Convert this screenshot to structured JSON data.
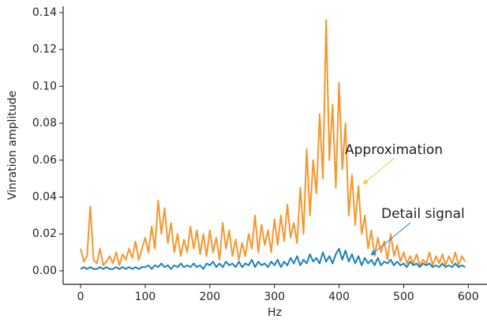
{
  "chart_data": {
    "type": "line",
    "xlabel": "Hz",
    "ylabel": "Vinration amplitude",
    "xlim": [
      -27,
      629
    ],
    "ylim": [
      -0.0073,
      0.1434
    ],
    "xticks": [
      0,
      100,
      200,
      300,
      400,
      500,
      600
    ],
    "yticks": [
      {
        "value": 0,
        "label": "0.00"
      },
      0.02,
      0.04,
      0.06,
      0.08,
      {
        "value": 0.1,
        "label": "0.10"
      },
      0.12,
      0.14
    ],
    "x": [
      0,
      5,
      10,
      15,
      20,
      25,
      30,
      35,
      40,
      45,
      50,
      55,
      60,
      65,
      70,
      75,
      80,
      85,
      90,
      95,
      100,
      105,
      110,
      115,
      120,
      125,
      130,
      135,
      140,
      145,
      150,
      155,
      160,
      165,
      170,
      175,
      180,
      185,
      190,
      195,
      200,
      205,
      210,
      215,
      220,
      225,
      230,
      235,
      240,
      245,
      250,
      255,
      260,
      265,
      270,
      275,
      280,
      285,
      290,
      295,
      300,
      305,
      310,
      315,
      320,
      325,
      330,
      335,
      340,
      345,
      350,
      355,
      360,
      365,
      370,
      375,
      380,
      385,
      390,
      395,
      400,
      405,
      410,
      415,
      420,
      425,
      430,
      435,
      440,
      445,
      450,
      455,
      460,
      465,
      470,
      475,
      480,
      485,
      490,
      495,
      500,
      505,
      510,
      515,
      520,
      525,
      530,
      535,
      540,
      545,
      550,
      555,
      560,
      565,
      570,
      575,
      580,
      585,
      590,
      595
    ],
    "series": [
      {
        "color": "#f7962d",
        "values": [
          0.012,
          0.005,
          0.008,
          0.035,
          0.006,
          0.004,
          0.012,
          0.003,
          0.005,
          0.008,
          0.004,
          0.01,
          0.003,
          0.009,
          0.006,
          0.012,
          0.007,
          0.016,
          0.006,
          0.012,
          0.018,
          0.01,
          0.024,
          0.012,
          0.038,
          0.02,
          0.034,
          0.015,
          0.026,
          0.01,
          0.02,
          0.008,
          0.017,
          0.01,
          0.024,
          0.012,
          0.022,
          0.009,
          0.02,
          0.008,
          0.022,
          0.01,
          0.018,
          0.006,
          0.026,
          0.012,
          0.022,
          0.008,
          0.017,
          0.006,
          0.015,
          0.008,
          0.02,
          0.012,
          0.03,
          0.01,
          0.025,
          0.014,
          0.022,
          0.01,
          0.028,
          0.014,
          0.03,
          0.016,
          0.036,
          0.018,
          0.026,
          0.015,
          0.045,
          0.02,
          0.066,
          0.03,
          0.06,
          0.042,
          0.085,
          0.05,
          0.136,
          0.06,
          0.09,
          0.045,
          0.102,
          0.055,
          0.08,
          0.03,
          0.052,
          0.025,
          0.046,
          0.02,
          0.03,
          0.012,
          0.022,
          0.008,
          0.018,
          0.01,
          0.016,
          0.006,
          0.02,
          0.008,
          0.014,
          0.005,
          0.01,
          0.004,
          0.008,
          0.004,
          0.009,
          0.003,
          0.006,
          0.004,
          0.01,
          0.003,
          0.008,
          0.004,
          0.009,
          0.003,
          0.008,
          0.004,
          0.01,
          0.003,
          0.008,
          0.005
        ]
      },
      {
        "color": "#1a80b8",
        "values": [
          0.001,
          0.002,
          0.001,
          0.002,
          0.001,
          0.001,
          0.002,
          0.001,
          0.002,
          0.001,
          0.001,
          0.002,
          0.001,
          0.002,
          0.001,
          0.002,
          0.001,
          0.002,
          0.001,
          0.002,
          0.002,
          0.003,
          0.001,
          0.003,
          0.002,
          0.004,
          0.002,
          0.003,
          0.001,
          0.003,
          0.002,
          0.004,
          0.002,
          0.003,
          0.002,
          0.004,
          0.002,
          0.003,
          0.001,
          0.004,
          0.003,
          0.005,
          0.002,
          0.004,
          0.002,
          0.005,
          0.003,
          0.004,
          0.002,
          0.005,
          0.002,
          0.004,
          0.003,
          0.006,
          0.002,
          0.005,
          0.003,
          0.004,
          0.002,
          0.005,
          0.003,
          0.006,
          0.002,
          0.005,
          0.003,
          0.007,
          0.004,
          0.008,
          0.003,
          0.006,
          0.004,
          0.009,
          0.005,
          0.007,
          0.004,
          0.01,
          0.005,
          0.008,
          0.004,
          0.009,
          0.012,
          0.006,
          0.011,
          0.005,
          0.009,
          0.004,
          0.008,
          0.003,
          0.007,
          0.004,
          0.006,
          0.003,
          0.007,
          0.003,
          0.005,
          0.004,
          0.006,
          0.003,
          0.005,
          0.003,
          0.004,
          0.002,
          0.005,
          0.003,
          0.004,
          0.002,
          0.004,
          0.003,
          0.004,
          0.002,
          0.003,
          0.002,
          0.004,
          0.002,
          0.003,
          0.002,
          0.004,
          0.002,
          0.003,
          0.002
        ]
      }
    ],
    "annotations": [
      {
        "text": "Approximation",
        "color": "#a8802a"
      },
      {
        "text": "Detail signal",
        "color": "#1a8ad0"
      }
    ]
  }
}
